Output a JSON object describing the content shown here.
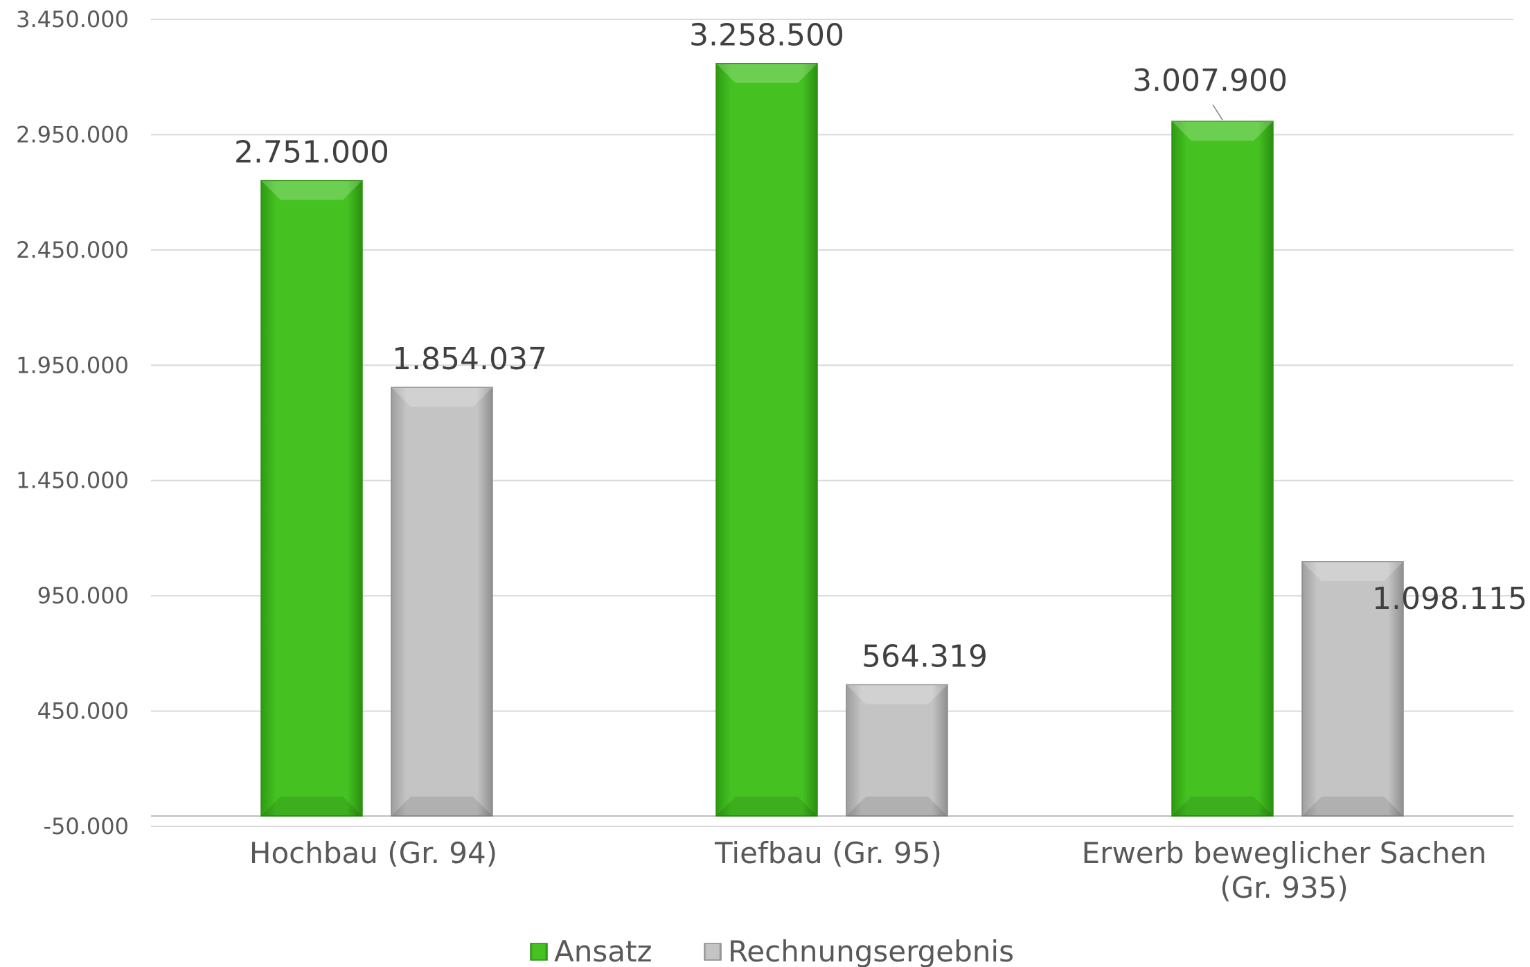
{
  "chart_data": {
    "type": "bar",
    "title": "",
    "xlabel": "",
    "ylabel": "",
    "categories": [
      [
        "Hochbau (Gr. 94)"
      ],
      [
        "Tiefbau (Gr. 95)"
      ],
      [
        "Erwerb beweglicher Sachen",
        "(Gr. 935)"
      ]
    ],
    "series": [
      {
        "name": "Ansatz",
        "color": "#3cb81c",
        "values": [
          2751000,
          3258500,
          3007900
        ],
        "labels": [
          "2.751.000",
          "3.258.500",
          "3.007.900"
        ]
      },
      {
        "name": "Rechnungsergebnis",
        "color": "#bdbdbd",
        "values": [
          1854037,
          564319,
          1098115
        ],
        "labels": [
          "1.854.037",
          "564.319",
          "1.098.115"
        ]
      }
    ],
    "ylim": [
      -50000,
      3450000
    ],
    "yticks": [
      -50000,
      450000,
      950000,
      1450000,
      1950000,
      2450000,
      2950000,
      3450000
    ],
    "ytick_labels": [
      "-50.000",
      "450.000",
      "950.000",
      "1.450.000",
      "1.950.000",
      "2.450.000",
      "2.950.000",
      "3.450.000"
    ],
    "grid": true,
    "legend_position": "bottom"
  }
}
